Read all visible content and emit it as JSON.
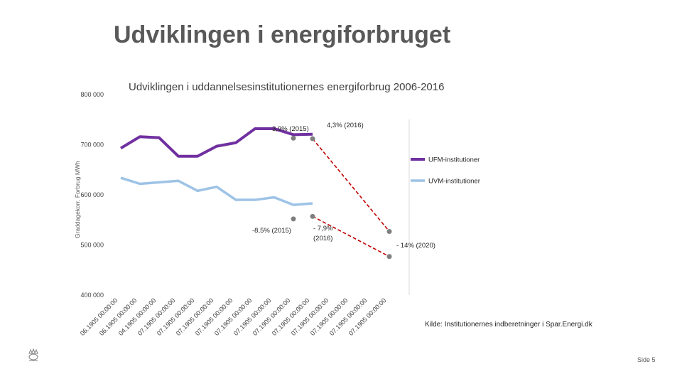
{
  "slide": {
    "title": "Udviklingen i energiforbruget",
    "page_label": "Side 5",
    "logo_icon": "crown-icon"
  },
  "chart_data": {
    "type": "line",
    "title": "Udviklingen i uddannelsesinstitutionernes energiforbrug 2006-2016",
    "ylabel": "Graddagekorr. Forbrug MWh",
    "xlabel": "",
    "ylim": [
      400000,
      800000
    ],
    "y_ticks": [
      "400 000",
      "500 000",
      "600 000",
      "700 000",
      "800 000"
    ],
    "y_tick_values": [
      400000,
      500000,
      600000,
      700000,
      800000
    ],
    "categories": [
      "06.1905 00:00:00",
      "06.1905 00:00:00",
      "04.1905 00:00:00",
      "07.1905 00:00:00",
      "07.1905 00:00:00",
      "07.1905 00:00:00",
      "07.1905 00:00:00",
      "07.1905 00:00:00",
      "07.1905 00:00:00",
      "07.1905 00:00:00",
      "07.1905 00:00:00",
      "07.1905 00:00:00",
      "07.1905 00:00:00",
      "07.1905 00:00:00",
      "07.1905 00:00:00"
    ],
    "series": [
      {
        "name": "UFM-institutioner",
        "color": "#7030a0",
        "values": [
          693000,
          716000,
          714000,
          677000,
          677000,
          697000,
          704000,
          732000,
          732000,
          720000,
          721000,
          null,
          null,
          null,
          null
        ]
      },
      {
        "name": "UVM-institutioner",
        "color": "#9dc3e6",
        "values": [
          634000,
          622000,
          625000,
          628000,
          608000,
          616000,
          590000,
          590000,
          595000,
          580000,
          583000,
          null,
          null,
          null,
          null
        ]
      }
    ],
    "targets": [
      {
        "color": "#c00000",
        "points": [
          {
            "x_index": 10,
            "y": 712000
          },
          {
            "x_index": 14,
            "y": 527000
          }
        ]
      },
      {
        "color": "#c00000",
        "points": [
          {
            "x_index": 10,
            "y": 557000
          },
          {
            "x_index": 14,
            "y": 477000
          }
        ]
      }
    ],
    "markers": [
      {
        "x_index": 9,
        "y": 713000
      },
      {
        "x_index": 9,
        "y": 552000
      }
    ],
    "annotations": [
      {
        "text": "3,9% (2015)"
      },
      {
        "text": "4,3% (2016)"
      },
      {
        "text": "-8,5% (2015)"
      },
      {
        "text": "- 7,9%"
      },
      {
        "text": "(2016)"
      },
      {
        "text": "- 14% (2020)"
      }
    ],
    "source": "Kilde: Institutionernes indberetninger i Spar.Energi.dk"
  }
}
